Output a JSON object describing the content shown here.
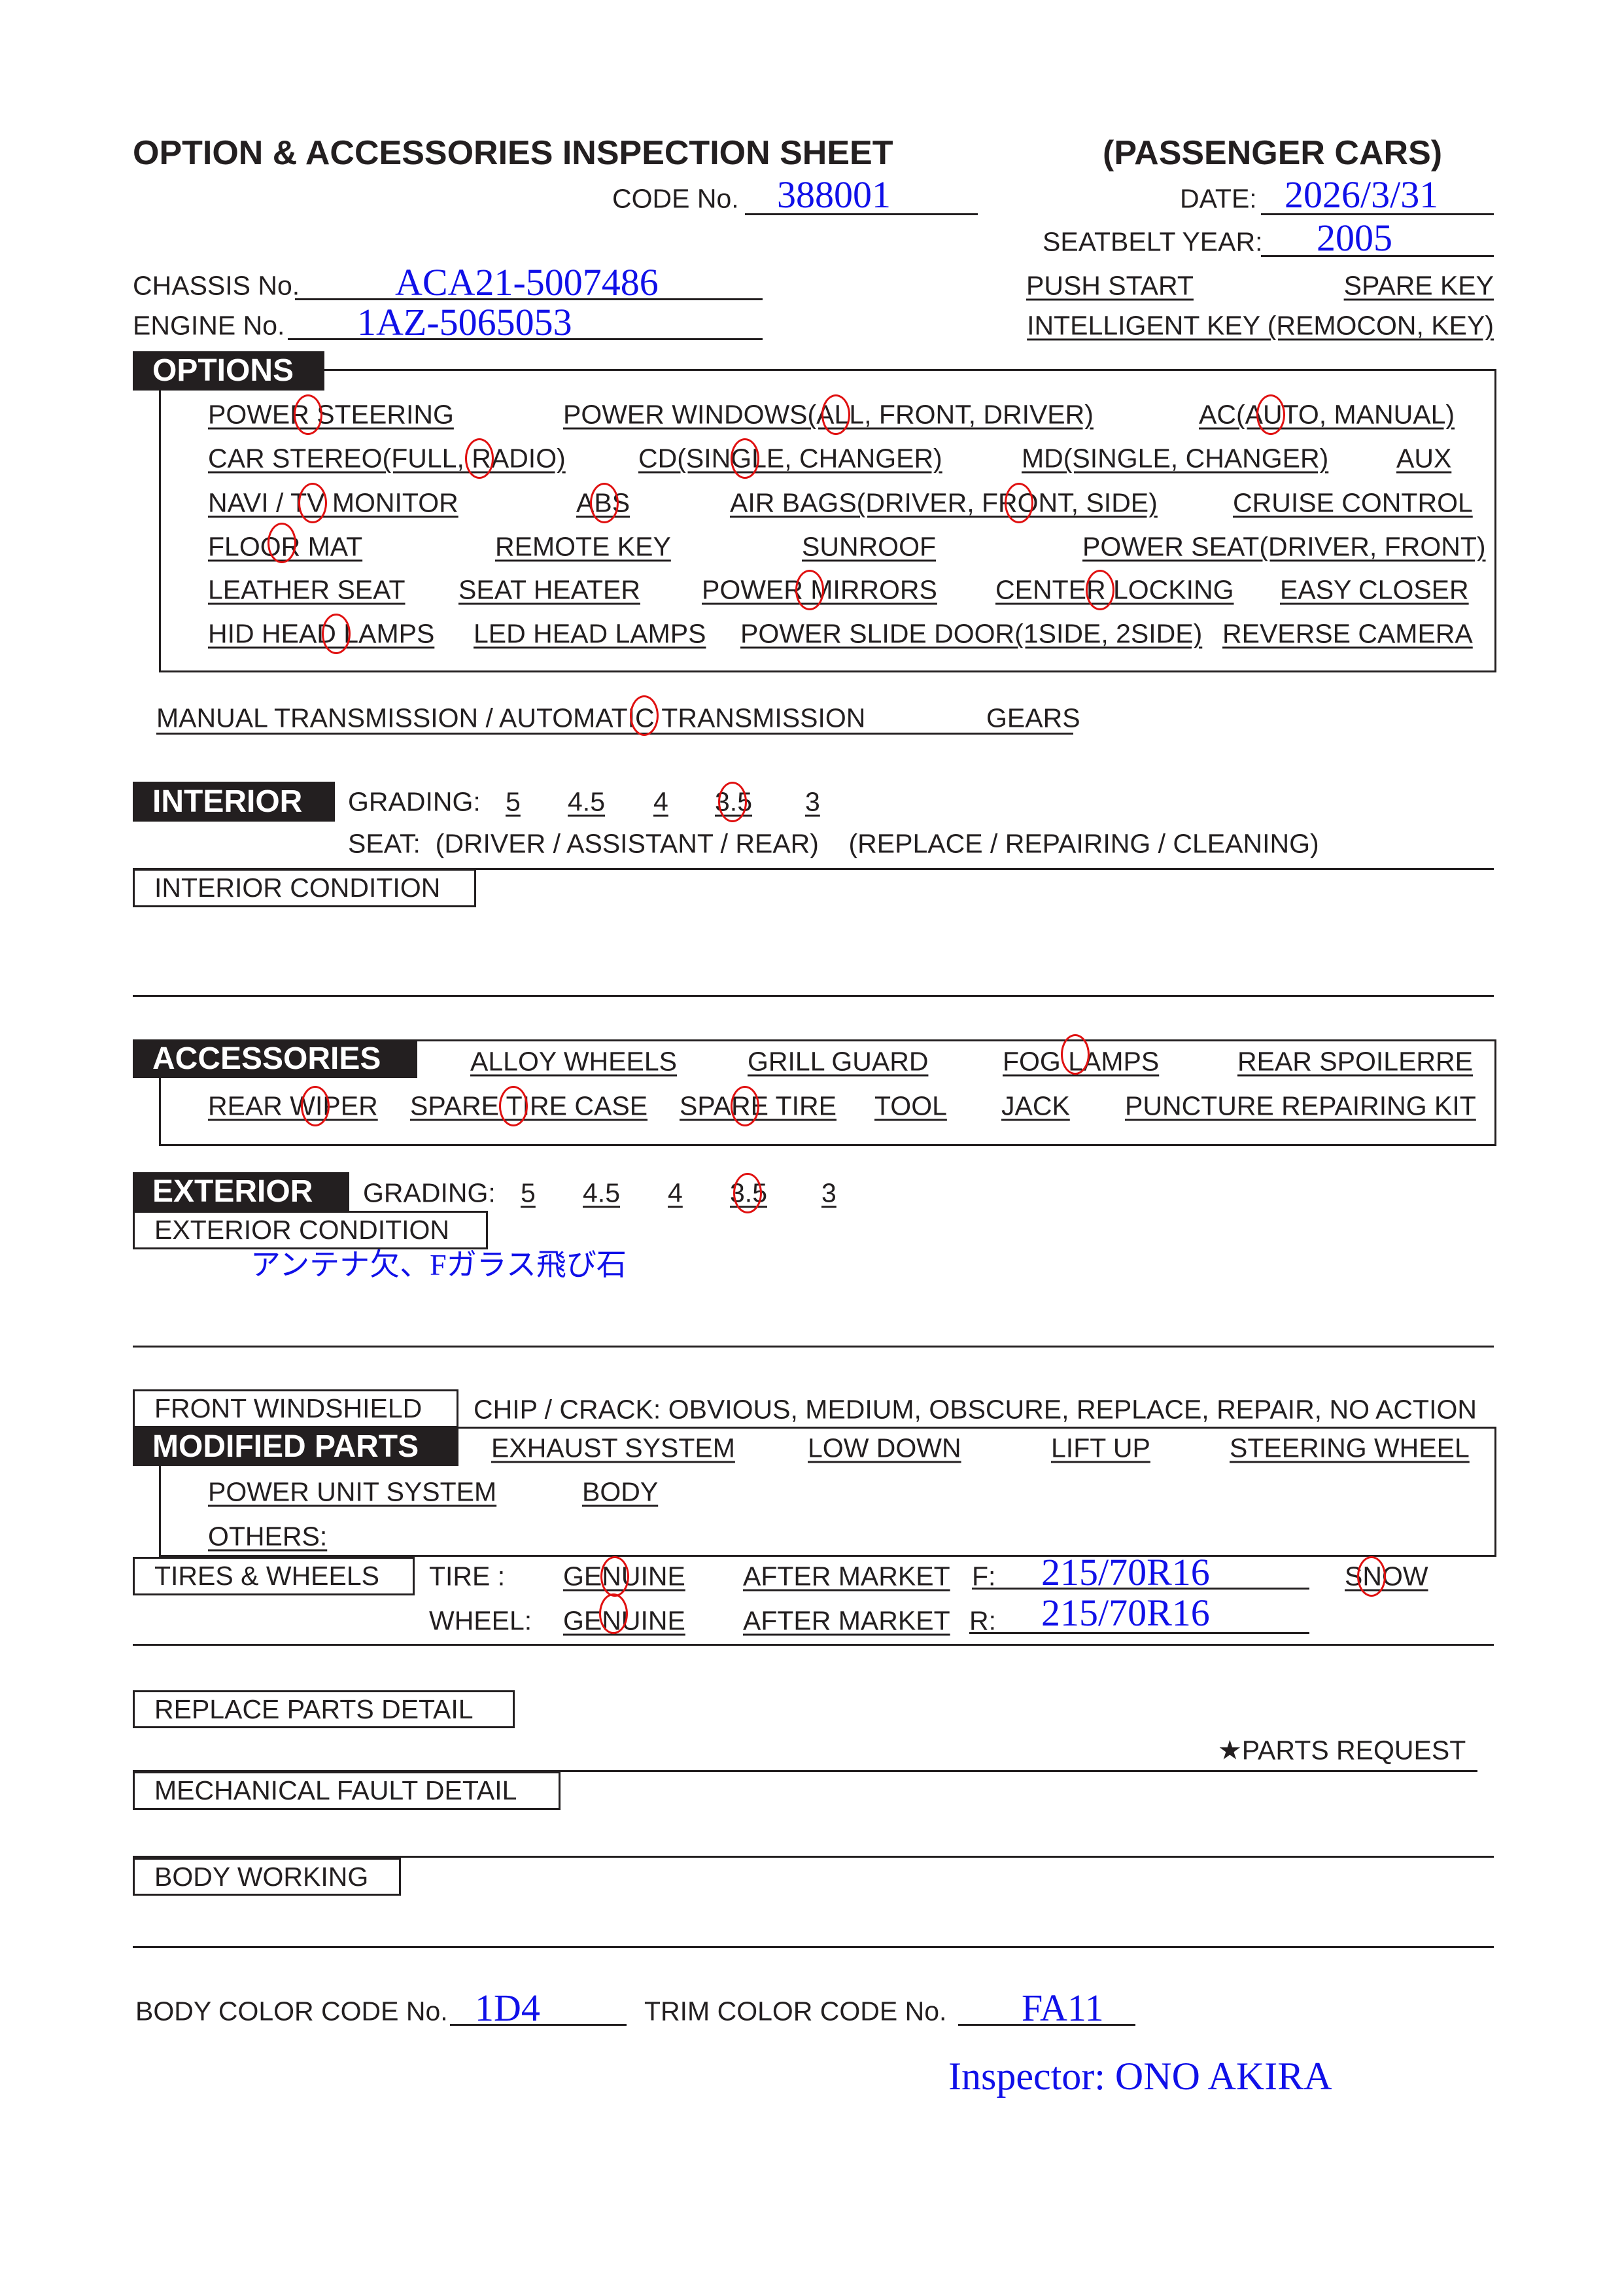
{
  "header": {
    "title": "OPTION & ACCESSORIES INSPECTION SHEET",
    "category": "(PASSENGER CARS)",
    "code_label": "CODE No.",
    "code_value": "388001",
    "date_label": "DATE:",
    "date_value": "2026/3/31",
    "seatbelt_label": "SEATBELT YEAR:",
    "seatbelt_value": "2005",
    "chassis_label": "CHASSIS No.",
    "chassis_value": "ACA21-5007486",
    "engine_label": "ENGINE No.",
    "engine_value": "1AZ-5065053",
    "push_start": "PUSH START",
    "spare_key": "SPARE KEY",
    "intelligent_key": "INTELLIGENT KEY (REMOCON, KEY)"
  },
  "options": {
    "heading": "OPTIONS",
    "rows": [
      [
        "POWER STEERING",
        "POWER WINDOWS(ALL, FRONT, DRIVER)",
        "AC(AUTO, MANUAL)"
      ],
      [
        "CAR STEREO(FULL, RADIO)",
        "CD(SINGLE, CHANGER)",
        "MD(SINGLE, CHANGER)",
        "AUX"
      ],
      [
        "NAVI / TV MONITOR",
        "ABS",
        "AIR BAGS(DRIVER, FRONT, SIDE)",
        "CRUISE CONTROL"
      ],
      [
        "FLOOR MAT",
        "REMOTE KEY",
        "SUNROOF",
        "POWER SEAT(DRIVER, FRONT)"
      ],
      [
        "LEATHER SEAT",
        "SEAT HEATER",
        "POWER MIRRORS",
        "CENTER LOCKING",
        "EASY CLOSER"
      ],
      [
        "HID HEAD LAMPS",
        "LED HEAD LAMPS",
        "POWER SLIDE DOOR(1SIDE,  2SIDE)",
        "REVERSE CAMERA"
      ]
    ],
    "transmission": "MANUAL TRANSMISSION / AUTOMATIC TRANSMISSION",
    "gears": "GEARS"
  },
  "interior": {
    "heading": "INTERIOR",
    "grading_label": "GRADING:",
    "grades": [
      "5",
      "4.5",
      "4",
      "3.5",
      "3"
    ],
    "selected_grade": "3.5",
    "seat_line": "SEAT:  (DRIVER / ASSISTANT / REAR)    (REPLACE / REPAIRING / CLEANING)",
    "condition_label": "INTERIOR CONDITION"
  },
  "accessories": {
    "heading": "ACCESSORIES",
    "row1": [
      "ALLOY WHEELS",
      "GRILL GUARD",
      "FOG LAMPS",
      "REAR SPOILERRE"
    ],
    "row2": [
      "REAR WIPER",
      "SPARE TIRE CASE",
      "SPARE TIRE",
      "TOOL",
      "JACK",
      "PUNCTURE REPAIRING KIT"
    ]
  },
  "exterior": {
    "heading": "EXTERIOR",
    "grading_label": "GRADING:",
    "grades": [
      "5",
      "4.5",
      "4",
      "3.5",
      "3"
    ],
    "selected_grade": "3.5",
    "condition_label": "EXTERIOR CONDITION",
    "condition_note": "アンテナ欠、Fガラス飛び石"
  },
  "windshield": {
    "label": "FRONT WINDSHIELD",
    "options": "CHIP / CRACK:  OBVIOUS,  MEDIUM,  OBSCURE,  REPLACE,  REPAIR,  NO ACTION"
  },
  "modified_parts": {
    "heading": "MODIFIED PARTS",
    "row1": [
      "EXHAUST SYSTEM",
      "LOW DOWN",
      "LIFT UP",
      "STEERING WHEEL"
    ],
    "row2": [
      "POWER UNIT SYSTEM",
      "BODY"
    ],
    "others": "OTHERS:"
  },
  "tires_wheels": {
    "label": "TIRES & WHEELS",
    "tire_label": "TIRE :",
    "wheel_label": "WHEEL:",
    "genuine": "GENUINE",
    "after_market": "AFTER MARKET",
    "front_label": "F:",
    "front_size": "215/70R16",
    "rear_label": "R:",
    "rear_size": "215/70R16",
    "snow": "SNOW"
  },
  "details": {
    "replace_parts": "REPLACE PARTS DETAIL",
    "parts_request": "★PARTS REQUEST",
    "mechanical_fault": "MECHANICAL FAULT DETAIL",
    "body_working": "BODY WORKING"
  },
  "footer": {
    "body_color_label": "BODY COLOR CODE No.",
    "body_color_value": "1D4",
    "trim_color_label": "TRIM COLOR CODE No.",
    "trim_color_value": "FA11",
    "inspector": "Inspector: ONO AKIRA"
  },
  "colors": {
    "ink": "#231f20",
    "handwriting": "#1010e8",
    "circle": "#e01010"
  }
}
